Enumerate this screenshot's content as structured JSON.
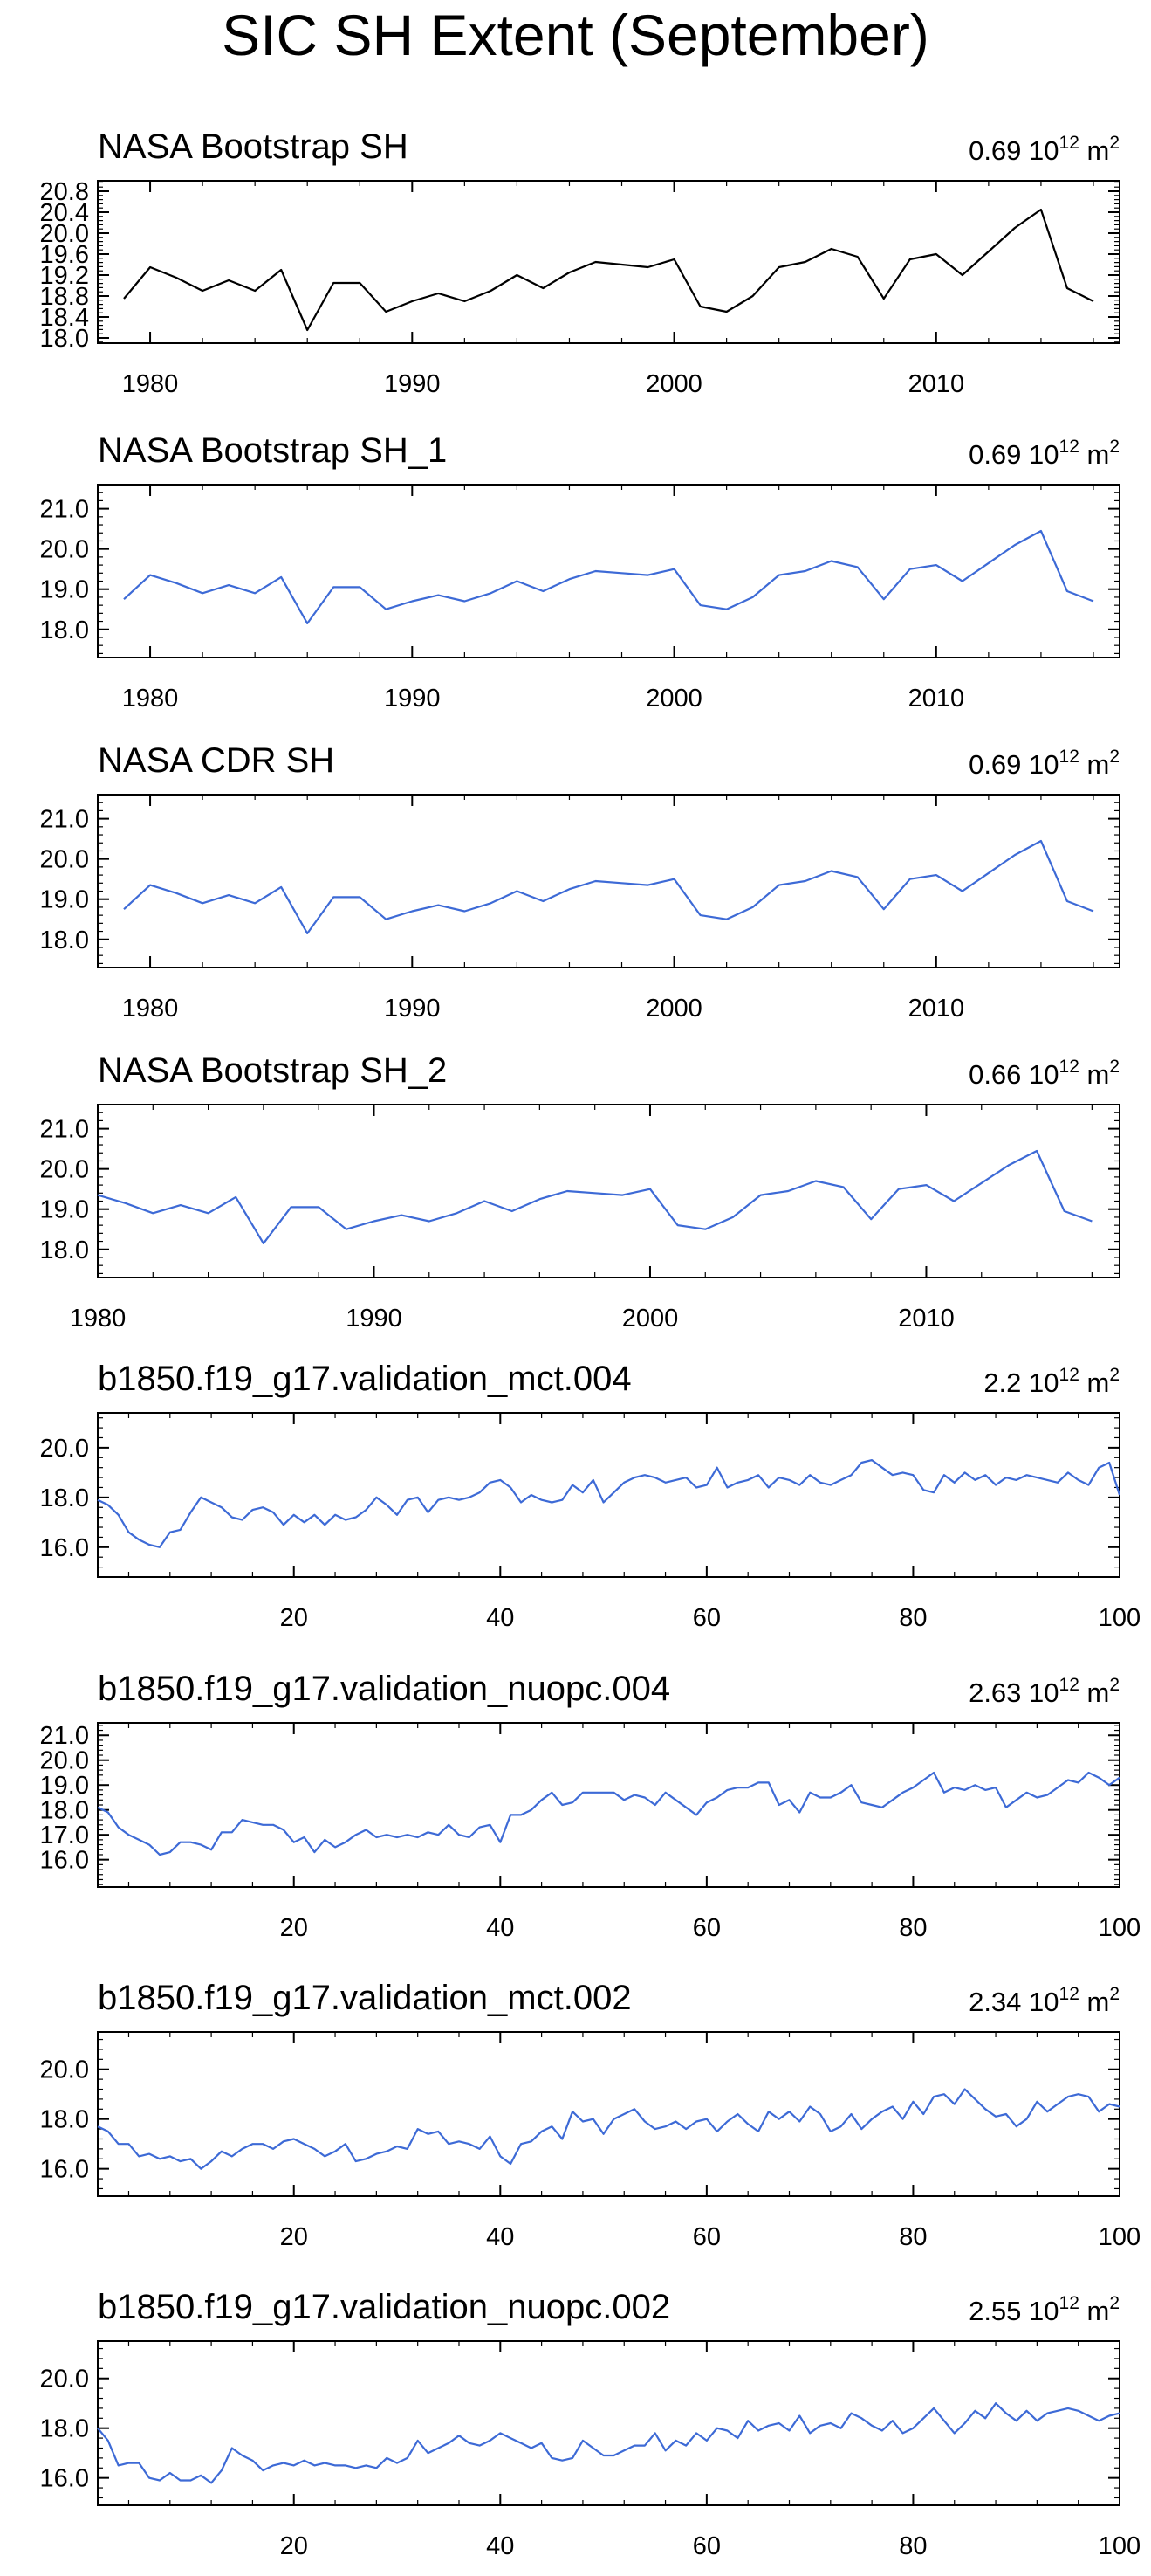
{
  "title": "SIC SH Extent (September)",
  "colors": {
    "observation": "#000000",
    "model": "#3d6ad6",
    "axis": "#000000",
    "background": "#ffffff"
  },
  "chart_data": [
    {
      "type": "line",
      "title": "NASA Bootstrap SH",
      "std_value": "0.69",
      "std_unit": "10",
      "std_exp": "12",
      "std_suffix": "m",
      "std_suffix_exp": "2",
      "xlim": [
        1978,
        2017
      ],
      "ylim": [
        17.9,
        21.0
      ],
      "xticks": [
        1980,
        1990,
        2000,
        2010
      ],
      "xtick_labels": [
        "1980",
        "1990",
        "2000",
        "2010"
      ],
      "yticks": [
        18.0,
        18.4,
        18.8,
        19.2,
        19.6,
        20.0,
        20.4,
        20.8
      ],
      "ytick_labels": [
        "18.0",
        "18.4",
        "18.8",
        "19.2",
        "19.6",
        "20.0",
        "20.4",
        "20.8"
      ],
      "series": [
        {
          "name": "NASA Bootstrap SH",
          "color": "#000000",
          "x": [
            1979,
            1980,
            1981,
            1982,
            1983,
            1984,
            1985,
            1986,
            1987,
            1988,
            1989,
            1990,
            1991,
            1992,
            1993,
            1994,
            1995,
            1996,
            1997,
            1998,
            1999,
            2000,
            2001,
            2002,
            2003,
            2004,
            2005,
            2006,
            2007,
            2008,
            2009,
            2010,
            2011,
            2012,
            2013,
            2014,
            2015,
            2016
          ],
          "values": [
            18.75,
            19.35,
            19.15,
            18.9,
            19.1,
            18.9,
            19.3,
            18.15,
            19.05,
            19.05,
            18.5,
            18.7,
            18.85,
            18.7,
            18.9,
            19.2,
            18.95,
            19.25,
            19.45,
            19.4,
            19.35,
            19.5,
            18.6,
            18.5,
            18.8,
            19.35,
            19.45,
            19.7,
            19.55,
            18.75,
            19.5,
            19.6,
            19.2,
            19.65,
            20.1,
            20.45,
            18.95,
            18.7
          ]
        }
      ]
    },
    {
      "type": "line",
      "title": "NASA Bootstrap SH_1",
      "std_value": "0.69",
      "std_unit": "10",
      "std_exp": "12",
      "std_suffix": "m",
      "std_suffix_exp": "2",
      "xlim": [
        1978,
        2017
      ],
      "ylim": [
        17.3,
        21.6
      ],
      "xticks": [
        1980,
        1990,
        2000,
        2010
      ],
      "xtick_labels": [
        "1980",
        "1990",
        "2000",
        "2010"
      ],
      "yticks": [
        18.0,
        19.0,
        20.0,
        21.0
      ],
      "ytick_labels": [
        "18.0",
        "19.0",
        "20.0",
        "21.0"
      ],
      "series": [
        {
          "name": "NASA Bootstrap SH_1",
          "color": "#3d6ad6",
          "x": [
            1979,
            1980,
            1981,
            1982,
            1983,
            1984,
            1985,
            1986,
            1987,
            1988,
            1989,
            1990,
            1991,
            1992,
            1993,
            1994,
            1995,
            1996,
            1997,
            1998,
            1999,
            2000,
            2001,
            2002,
            2003,
            2004,
            2005,
            2006,
            2007,
            2008,
            2009,
            2010,
            2011,
            2012,
            2013,
            2014,
            2015,
            2016
          ],
          "values": [
            18.75,
            19.35,
            19.15,
            18.9,
            19.1,
            18.9,
            19.3,
            18.15,
            19.05,
            19.05,
            18.5,
            18.7,
            18.85,
            18.7,
            18.9,
            19.2,
            18.95,
            19.25,
            19.45,
            19.4,
            19.35,
            19.5,
            18.6,
            18.5,
            18.8,
            19.35,
            19.45,
            19.7,
            19.55,
            18.75,
            19.5,
            19.6,
            19.2,
            19.65,
            20.1,
            20.45,
            18.95,
            18.7
          ]
        }
      ]
    },
    {
      "type": "line",
      "title": "NASA CDR SH",
      "std_value": "0.69",
      "std_unit": "10",
      "std_exp": "12",
      "std_suffix": "m",
      "std_suffix_exp": "2",
      "xlim": [
        1978,
        2017
      ],
      "ylim": [
        17.3,
        21.6
      ],
      "xticks": [
        1980,
        1990,
        2000,
        2010
      ],
      "xtick_labels": [
        "1980",
        "1990",
        "2000",
        "2010"
      ],
      "yticks": [
        18.0,
        19.0,
        20.0,
        21.0
      ],
      "ytick_labels": [
        "18.0",
        "19.0",
        "20.0",
        "21.0"
      ],
      "series": [
        {
          "name": "NASA CDR SH",
          "color": "#3d6ad6",
          "x": [
            1979,
            1980,
            1981,
            1982,
            1983,
            1984,
            1985,
            1986,
            1987,
            1988,
            1989,
            1990,
            1991,
            1992,
            1993,
            1994,
            1995,
            1996,
            1997,
            1998,
            1999,
            2000,
            2001,
            2002,
            2003,
            2004,
            2005,
            2006,
            2007,
            2008,
            2009,
            2010,
            2011,
            2012,
            2013,
            2014,
            2015,
            2016
          ],
          "values": [
            18.75,
            19.35,
            19.15,
            18.9,
            19.1,
            18.9,
            19.3,
            18.15,
            19.05,
            19.05,
            18.5,
            18.7,
            18.85,
            18.7,
            18.9,
            19.2,
            18.95,
            19.25,
            19.45,
            19.4,
            19.35,
            19.5,
            18.6,
            18.5,
            18.8,
            19.35,
            19.45,
            19.7,
            19.55,
            18.75,
            19.5,
            19.6,
            19.2,
            19.65,
            20.1,
            20.45,
            18.95,
            18.7
          ]
        }
      ]
    },
    {
      "type": "line",
      "title": "NASA Bootstrap SH_2",
      "std_value": "0.66",
      "std_unit": "10",
      "std_exp": "12",
      "std_suffix": "m",
      "std_suffix_exp": "2",
      "xlim": [
        1980,
        2017
      ],
      "ylim": [
        17.3,
        21.6
      ],
      "xticks": [
        1980,
        1990,
        2000,
        2010
      ],
      "xtick_labels": [
        "1980",
        "1990",
        "2000",
        "2010"
      ],
      "yticks": [
        18.0,
        19.0,
        20.0,
        21.0
      ],
      "ytick_labels": [
        "18.0",
        "19.0",
        "20.0",
        "21.0"
      ],
      "series": [
        {
          "name": "NASA Bootstrap SH_2",
          "color": "#3d6ad6",
          "x": [
            1980,
            1981,
            1982,
            1983,
            1984,
            1985,
            1986,
            1987,
            1988,
            1989,
            1990,
            1991,
            1992,
            1993,
            1994,
            1995,
            1996,
            1997,
            1998,
            1999,
            2000,
            2001,
            2002,
            2003,
            2004,
            2005,
            2006,
            2007,
            2008,
            2009,
            2010,
            2011,
            2012,
            2013,
            2014,
            2015,
            2016
          ],
          "values": [
            19.35,
            19.15,
            18.9,
            19.1,
            18.9,
            19.3,
            18.15,
            19.05,
            19.05,
            18.5,
            18.7,
            18.85,
            18.7,
            18.9,
            19.2,
            18.95,
            19.25,
            19.45,
            19.4,
            19.35,
            19.5,
            18.6,
            18.5,
            18.8,
            19.35,
            19.45,
            19.7,
            19.55,
            18.75,
            19.5,
            19.6,
            19.2,
            19.65,
            20.1,
            20.45,
            18.95,
            18.7
          ]
        }
      ]
    },
    {
      "type": "line",
      "title": "b1850.f19_g17.validation_mct.004",
      "std_value": "2.2",
      "std_unit": "10",
      "std_exp": "12",
      "std_suffix": "m",
      "std_suffix_exp": "2",
      "xlim": [
        1,
        100
      ],
      "ylim": [
        14.8,
        21.4
      ],
      "xticks": [
        20,
        40,
        60,
        80,
        100
      ],
      "xtick_labels": [
        "20",
        "40",
        "60",
        "80",
        "100"
      ],
      "yticks": [
        16.0,
        18.0,
        20.0
      ],
      "ytick_labels": [
        "16.0",
        "18.0",
        "20.0"
      ],
      "series": [
        {
          "name": "b1850.f19_g17.validation_mct.004",
          "color": "#3d6ad6",
          "x_start": 1,
          "values": [
            17.9,
            17.7,
            17.3,
            16.6,
            16.3,
            16.1,
            16.0,
            16.6,
            16.7,
            17.4,
            18.0,
            17.8,
            17.6,
            17.2,
            17.1,
            17.5,
            17.6,
            17.4,
            16.9,
            17.3,
            17.0,
            17.3,
            16.9,
            17.3,
            17.1,
            17.2,
            17.5,
            18.0,
            17.7,
            17.3,
            17.9,
            18.0,
            17.4,
            17.9,
            18.0,
            17.9,
            18.0,
            18.2,
            18.6,
            18.7,
            18.4,
            17.8,
            18.1,
            17.9,
            17.8,
            17.9,
            18.5,
            18.2,
            18.7,
            17.8,
            18.2,
            18.6,
            18.8,
            18.9,
            18.8,
            18.6,
            18.7,
            18.8,
            18.4,
            18.5,
            19.2,
            18.4,
            18.6,
            18.7,
            18.9,
            18.4,
            18.8,
            18.7,
            18.5,
            18.9,
            18.6,
            18.5,
            18.7,
            18.9,
            19.4,
            19.5,
            19.2,
            18.9,
            19.0,
            18.9,
            18.3,
            18.2,
            18.9,
            18.6,
            19.0,
            18.7,
            18.9,
            18.5,
            18.8,
            18.7,
            18.9,
            18.8,
            18.7,
            18.6,
            19.0,
            18.7,
            18.5,
            19.2,
            19.4,
            18.1
          ]
        }
      ]
    },
    {
      "type": "line",
      "title": "b1850.f19_g17.validation_nuopc.004",
      "std_value": "2.63",
      "std_unit": "10",
      "std_exp": "12",
      "std_suffix": "m",
      "std_suffix_exp": "2",
      "xlim": [
        1,
        100
      ],
      "ylim": [
        14.9,
        21.5
      ],
      "xticks": [
        20,
        40,
        60,
        80,
        100
      ],
      "xtick_labels": [
        "20",
        "40",
        "60",
        "80",
        "100"
      ],
      "yticks": [
        16.0,
        17.0,
        18.0,
        19.0,
        20.0,
        21.0
      ],
      "ytick_labels": [
        "16.0",
        "17.0",
        "18.0",
        "19.0",
        "20.0",
        "21.0"
      ],
      "series": [
        {
          "name": "b1850.f19_g17.validation_nuopc.004",
          "color": "#3d6ad6",
          "x_start": 1,
          "values": [
            18.1,
            17.9,
            17.3,
            17.0,
            16.8,
            16.6,
            16.2,
            16.3,
            16.7,
            16.7,
            16.6,
            16.4,
            17.1,
            17.1,
            17.6,
            17.5,
            17.4,
            17.4,
            17.2,
            16.7,
            16.9,
            16.3,
            16.8,
            16.5,
            16.7,
            17.0,
            17.2,
            16.9,
            17.0,
            16.9,
            17.0,
            16.9,
            17.1,
            17.0,
            17.4,
            17.0,
            16.9,
            17.3,
            17.4,
            16.7,
            17.8,
            17.8,
            18.0,
            18.4,
            18.7,
            18.2,
            18.3,
            18.7,
            18.7,
            18.7,
            18.7,
            18.4,
            18.6,
            18.5,
            18.2,
            18.7,
            18.4,
            18.1,
            17.8,
            18.3,
            18.5,
            18.8,
            18.9,
            18.9,
            19.1,
            19.1,
            18.2,
            18.4,
            17.9,
            18.7,
            18.5,
            18.5,
            18.7,
            19.0,
            18.3,
            18.2,
            18.1,
            18.4,
            18.7,
            18.9,
            19.2,
            19.5,
            18.7,
            18.9,
            18.8,
            19.0,
            18.8,
            18.9,
            18.1,
            18.4,
            18.7,
            18.5,
            18.6,
            18.9,
            19.2,
            19.1,
            19.5,
            19.3,
            19.0,
            19.3
          ]
        }
      ]
    },
    {
      "type": "line",
      "title": "b1850.f19_g17.validation_mct.002",
      "std_value": "2.34",
      "std_unit": "10",
      "std_exp": "12",
      "std_suffix": "m",
      "std_suffix_exp": "2",
      "xlim": [
        1,
        100
      ],
      "ylim": [
        14.9,
        21.5
      ],
      "xticks": [
        20,
        40,
        60,
        80,
        100
      ],
      "xtick_labels": [
        "20",
        "40",
        "60",
        "80",
        "100"
      ],
      "yticks": [
        16.0,
        18.0,
        20.0
      ],
      "ytick_labels": [
        "16.0",
        "18.0",
        "20.0"
      ],
      "series": [
        {
          "name": "b1850.f19_g17.validation_mct.002",
          "color": "#3d6ad6",
          "x_start": 1,
          "values": [
            17.7,
            17.5,
            17.0,
            17.0,
            16.5,
            16.6,
            16.4,
            16.5,
            16.3,
            16.4,
            16.0,
            16.3,
            16.7,
            16.5,
            16.8,
            17.0,
            17.0,
            16.8,
            17.1,
            17.2,
            17.0,
            16.8,
            16.5,
            16.7,
            17.0,
            16.3,
            16.4,
            16.6,
            16.7,
            16.9,
            16.8,
            17.6,
            17.4,
            17.5,
            17.0,
            17.1,
            17.0,
            16.8,
            17.3,
            16.5,
            16.2,
            17.0,
            17.1,
            17.5,
            17.7,
            17.2,
            18.3,
            17.9,
            18.0,
            17.4,
            18.0,
            18.2,
            18.4,
            17.9,
            17.6,
            17.7,
            17.9,
            17.6,
            17.9,
            18.0,
            17.5,
            17.9,
            18.2,
            17.8,
            17.5,
            18.3,
            18.0,
            18.3,
            17.9,
            18.5,
            18.2,
            17.5,
            17.7,
            18.2,
            17.6,
            18.0,
            18.3,
            18.5,
            18.0,
            18.7,
            18.2,
            18.9,
            19.0,
            18.6,
            19.2,
            18.8,
            18.4,
            18.1,
            18.2,
            17.7,
            18.0,
            18.7,
            18.3,
            18.6,
            18.9,
            19.0,
            18.9,
            18.3,
            18.6,
            18.5
          ]
        }
      ]
    },
    {
      "type": "line",
      "title": "b1850.f19_g17.validation_nuopc.002",
      "std_value": "2.55",
      "std_unit": "10",
      "std_exp": "12",
      "std_suffix": "m",
      "std_suffix_exp": "2",
      "xlim": [
        1,
        100
      ],
      "ylim": [
        14.9,
        21.5
      ],
      "xticks": [
        20,
        40,
        60,
        80,
        100
      ],
      "xtick_labels": [
        "20",
        "40",
        "60",
        "80",
        "100"
      ],
      "yticks": [
        16.0,
        18.0,
        20.0
      ],
      "ytick_labels": [
        "16.0",
        "18.0",
        "20.0"
      ],
      "series": [
        {
          "name": "b1850.f19_g17.validation_nuopc.002",
          "color": "#3d6ad6",
          "x_start": 1,
          "values": [
            18.0,
            17.5,
            16.5,
            16.6,
            16.6,
            16.0,
            15.9,
            16.2,
            15.9,
            15.9,
            16.1,
            15.8,
            16.3,
            17.2,
            16.9,
            16.7,
            16.3,
            16.5,
            16.6,
            16.5,
            16.7,
            16.5,
            16.6,
            16.5,
            16.5,
            16.4,
            16.5,
            16.4,
            16.8,
            16.6,
            16.8,
            17.5,
            17.0,
            17.2,
            17.4,
            17.7,
            17.4,
            17.3,
            17.5,
            17.8,
            17.6,
            17.4,
            17.2,
            17.4,
            16.8,
            16.7,
            16.8,
            17.5,
            17.2,
            16.9,
            16.9,
            17.1,
            17.3,
            17.3,
            17.8,
            17.1,
            17.5,
            17.3,
            17.8,
            17.5,
            18.0,
            17.9,
            17.6,
            18.3,
            17.9,
            18.1,
            18.2,
            17.9,
            18.5,
            17.8,
            18.1,
            18.2,
            18.0,
            18.6,
            18.4,
            18.1,
            17.9,
            18.3,
            17.8,
            18.0,
            18.4,
            18.8,
            18.3,
            17.8,
            18.2,
            18.7,
            18.4,
            19.0,
            18.6,
            18.3,
            18.7,
            18.3,
            18.6,
            18.7,
            18.8,
            18.7,
            18.5,
            18.3,
            18.5,
            18.6
          ]
        }
      ]
    }
  ]
}
